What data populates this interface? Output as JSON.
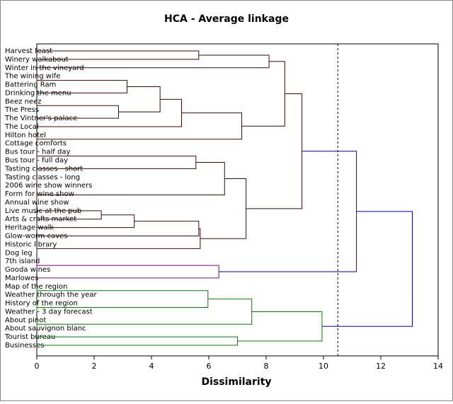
{
  "chart_data": {
    "type": "dendrogram",
    "title": "HCA - Average linkage",
    "x_label": "Dissimilarity",
    "xlim": [
      0,
      14
    ],
    "xticks": [
      0,
      2,
      4,
      6,
      8,
      10,
      12,
      14
    ],
    "cut_line": 10.5,
    "cluster_colors": [
      "#3a0a0a",
      "#800080",
      "#008000"
    ],
    "above_color": "#0000cc",
    "leaves": [
      "Harvest feast",
      "Winery walkabout",
      "Winter in the vineyard",
      "The wining wife",
      "Battering Ram",
      "Drinking the menu",
      "Beez neez",
      "The Press",
      "The Vintner's palace",
      "The Local",
      "Hilton hotel",
      "Cottage comforts",
      "Bus tour - half day",
      "Bus tour - full day",
      "Tasting classes - short",
      "Tasting classes - long",
      "2006 wine show winners",
      "Form for wine show",
      "Annual wine show",
      "Live music at the pub",
      "Arts & crafts market",
      "Heritage walk",
      "Glow-worm caves",
      "Historic library",
      "Dog leg",
      "7th island",
      "Gooda wines",
      "Marlowes",
      "Map of the region",
      "Weather through the year",
      "History of the region",
      "Weather - 3 day forecast",
      "About pinot",
      "About sauvignon blanc",
      "Tourist bureau",
      "Businesses"
    ],
    "merges": [
      [
        0,
        1,
        5.65
      ],
      [
        36,
        2,
        8.1
      ],
      [
        3,
        4,
        0
      ],
      [
        38,
        5,
        3.15
      ],
      [
        6,
        7,
        0
      ],
      [
        40,
        8,
        2.85
      ],
      [
        39,
        41,
        4.3
      ],
      [
        42,
        9,
        5.05
      ],
      [
        10,
        11,
        0
      ],
      [
        43,
        44,
        7.15
      ],
      [
        37,
        45,
        8.65
      ],
      [
        12,
        13,
        0
      ],
      [
        47,
        14,
        5.55
      ],
      [
        15,
        16,
        0
      ],
      [
        49,
        17,
        0
      ],
      [
        50,
        18,
        0
      ],
      [
        48,
        51,
        6.55
      ],
      [
        19,
        20,
        2.25
      ],
      [
        53,
        21,
        3.4
      ],
      [
        54,
        22,
        5.65
      ],
      [
        23,
        24,
        0
      ],
      [
        55,
        56,
        5.7
      ],
      [
        52,
        57,
        7.3
      ],
      [
        46,
        58,
        9.25
      ],
      [
        25,
        26,
        0
      ],
      [
        60,
        27,
        6.35
      ],
      [
        59,
        61,
        11.15
      ],
      [
        28,
        29,
        0
      ],
      [
        30,
        31,
        0
      ],
      [
        63,
        64,
        5.97
      ],
      [
        32,
        33,
        0
      ],
      [
        65,
        66,
        7.5
      ],
      [
        34,
        35,
        7.0
      ],
      [
        67,
        68,
        9.95
      ],
      [
        62,
        69,
        13.1
      ]
    ]
  }
}
